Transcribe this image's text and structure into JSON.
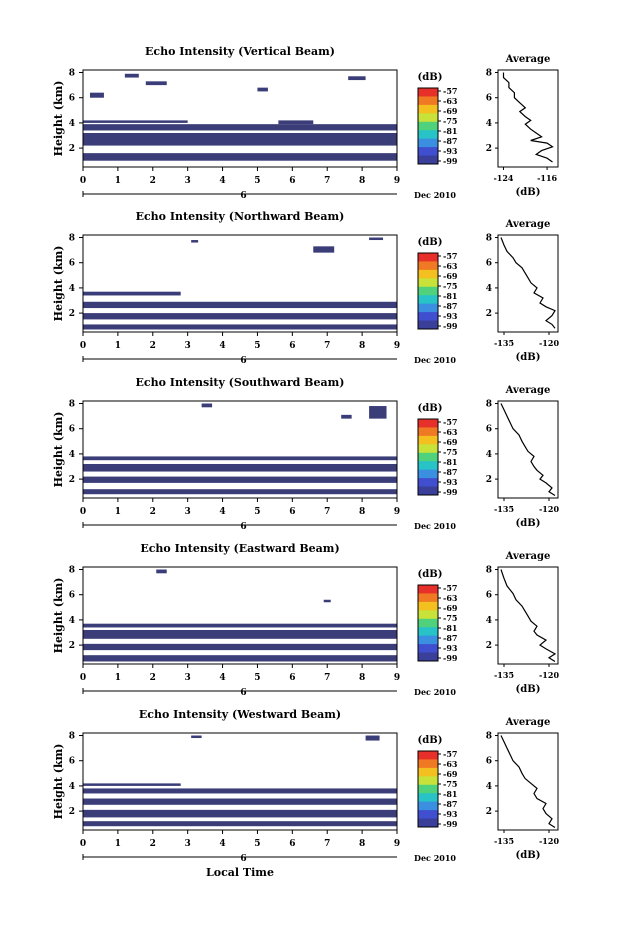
{
  "common": {
    "unit_label": "(dB)",
    "ylabel": "Height (km)",
    "date_label": "Dec 2010",
    "day_label": "6",
    "xlabel": "Local Time",
    "avg_title": "Average",
    "x_ticks": [
      "0",
      "1",
      "2",
      "3",
      "4",
      "5",
      "6",
      "7",
      "8",
      "9"
    ],
    "y_ticks": [
      "2",
      "4",
      "6",
      "8"
    ],
    "colorbar_ticks": [
      "-57",
      "-63",
      "-69",
      "-75",
      "-81",
      "-87",
      "-93",
      "-99"
    ],
    "colorbar_colors": [
      "#e8302a",
      "#f07a24",
      "#f3c020",
      "#c8e23a",
      "#4fd27b",
      "#27c3c7",
      "#3a8fe0",
      "#3f4fcf",
      "#3a3f9a"
    ]
  },
  "chart_data": [
    {
      "type": "heatmap",
      "title": "Echo Intensity (Vertical Beam)",
      "xlim": [
        0,
        9
      ],
      "ylim": [
        0.5,
        8.2
      ],
      "avg_xticks": [
        "-124",
        "-116"
      ],
      "avg_xlim": [
        -125,
        -114
      ],
      "avg_profile": [
        [
          -115,
          0.9
        ],
        [
          -116,
          1.2
        ],
        [
          -118,
          1.5
        ],
        [
          -117,
          1.8
        ],
        [
          -115,
          2.1
        ],
        [
          -116,
          2.4
        ],
        [
          -119,
          2.6
        ],
        [
          -117,
          2.9
        ],
        [
          -118,
          3.2
        ],
        [
          -119,
          3.5
        ],
        [
          -120,
          3.9
        ],
        [
          -119,
          4.2
        ],
        [
          -120,
          4.5
        ],
        [
          -121,
          4.9
        ],
        [
          -120,
          5.2
        ],
        [
          -121,
          5.6
        ],
        [
          -122,
          6.0
        ],
        [
          -122,
          6.4
        ],
        [
          -123,
          6.8
        ],
        [
          -123,
          7.2
        ],
        [
          -124,
          7.6
        ],
        [
          -124,
          8.0
        ]
      ],
      "echo_bands": [
        [
          0,
          9,
          1.0,
          1.6
        ],
        [
          0,
          9,
          2.2,
          3.2
        ],
        [
          0,
          9,
          3.4,
          3.9
        ],
        [
          0,
          3,
          4.0,
          4.2
        ],
        [
          5.6,
          6.6,
          3.9,
          4.2
        ],
        [
          0.2,
          0.6,
          6.0,
          6.4
        ],
        [
          1.2,
          1.6,
          7.6,
          7.9
        ],
        [
          7.6,
          8.1,
          7.4,
          7.7
        ],
        [
          1.8,
          2.4,
          7.0,
          7.3
        ],
        [
          5.0,
          5.3,
          6.5,
          6.8
        ]
      ]
    },
    {
      "type": "heatmap",
      "title": "Echo Intensity (Northward Beam)",
      "xlim": [
        0,
        9
      ],
      "ylim": [
        0.5,
        8.2
      ],
      "avg_xticks": [
        "-135",
        "-120"
      ],
      "avg_xlim": [
        -137,
        -117
      ],
      "avg_profile": [
        [
          -118,
          0.8
        ],
        [
          -119,
          1.1
        ],
        [
          -121,
          1.4
        ],
        [
          -119,
          1.8
        ],
        [
          -118,
          2.2
        ],
        [
          -121,
          2.5
        ],
        [
          -123,
          2.8
        ],
        [
          -122,
          3.2
        ],
        [
          -125,
          3.6
        ],
        [
          -124,
          4.0
        ],
        [
          -126,
          4.4
        ],
        [
          -127,
          4.8
        ],
        [
          -128,
          5.2
        ],
        [
          -129,
          5.6
        ],
        [
          -131,
          6.0
        ],
        [
          -132,
          6.4
        ],
        [
          -134,
          6.9
        ],
        [
          -135,
          7.4
        ],
        [
          -136,
          8.0
        ]
      ],
      "echo_bands": [
        [
          0,
          9,
          0.7,
          1.1
        ],
        [
          0,
          9,
          1.5,
          2.0
        ],
        [
          0,
          9,
          2.4,
          2.9
        ],
        [
          0,
          2.8,
          3.4,
          3.7
        ],
        [
          6.6,
          7.2,
          6.8,
          7.3
        ],
        [
          3.1,
          3.3,
          7.6,
          7.8
        ],
        [
          8.2,
          8.6,
          7.8,
          8.0
        ]
      ]
    },
    {
      "type": "heatmap",
      "title": "Echo Intensity (Southward Beam)",
      "xlim": [
        0,
        9
      ],
      "ylim": [
        0.5,
        8.2
      ],
      "avg_xticks": [
        "-135",
        "-120"
      ],
      "avg_xlim": [
        -137,
        -117
      ],
      "avg_profile": [
        [
          -118,
          0.7
        ],
        [
          -120,
          1.0
        ],
        [
          -119,
          1.3
        ],
        [
          -121,
          1.7
        ],
        [
          -123,
          2.0
        ],
        [
          -122,
          2.3
        ],
        [
          -124,
          2.7
        ],
        [
          -125,
          3.0
        ],
        [
          -126,
          3.4
        ],
        [
          -125,
          3.8
        ],
        [
          -127,
          4.2
        ],
        [
          -128,
          4.6
        ],
        [
          -129,
          5.0
        ],
        [
          -130,
          5.5
        ],
        [
          -132,
          6.0
        ],
        [
          -133,
          6.5
        ],
        [
          -134,
          7.0
        ],
        [
          -135,
          7.5
        ],
        [
          -136,
          8.0
        ]
      ],
      "echo_bands": [
        [
          0,
          9,
          0.8,
          1.2
        ],
        [
          0,
          9,
          1.7,
          2.2
        ],
        [
          0,
          9,
          2.6,
          3.2
        ],
        [
          0,
          9,
          3.5,
          3.8
        ],
        [
          3.4,
          3.7,
          7.7,
          8.0
        ],
        [
          8.2,
          8.7,
          6.8,
          7.8
        ],
        [
          7.4,
          7.7,
          6.8,
          7.1
        ]
      ]
    },
    {
      "type": "heatmap",
      "title": "Echo Intensity (Eastward Beam)",
      "xlim": [
        0,
        9
      ],
      "ylim": [
        0.5,
        8.2
      ],
      "avg_xticks": [
        "-135",
        "-120"
      ],
      "avg_xlim": [
        -137,
        -117
      ],
      "avg_profile": [
        [
          -118,
          0.7
        ],
        [
          -120,
          1.0
        ],
        [
          -118,
          1.3
        ],
        [
          -121,
          1.7
        ],
        [
          -123,
          2.0
        ],
        [
          -121,
          2.4
        ],
        [
          -124,
          2.8
        ],
        [
          -125,
          3.1
        ],
        [
          -124,
          3.5
        ],
        [
          -126,
          3.9
        ],
        [
          -127,
          4.3
        ],
        [
          -128,
          4.7
        ],
        [
          -129,
          5.1
        ],
        [
          -131,
          5.6
        ],
        [
          -132,
          6.1
        ],
        [
          -134,
          6.7
        ],
        [
          -135,
          7.3
        ],
        [
          -136,
          8.0
        ]
      ],
      "echo_bands": [
        [
          0,
          9,
          0.7,
          1.2
        ],
        [
          0,
          9,
          1.6,
          2.1
        ],
        [
          0,
          9,
          2.5,
          3.2
        ],
        [
          0,
          9,
          3.4,
          3.7
        ],
        [
          2.1,
          2.4,
          7.7,
          8.0
        ],
        [
          6.9,
          7.1,
          5.4,
          5.6
        ]
      ]
    },
    {
      "type": "heatmap",
      "title": "Echo Intensity (Westward Beam)",
      "xlim": [
        0,
        9
      ],
      "ylim": [
        0.5,
        8.2
      ],
      "avg_xticks": [
        "-135",
        "-120"
      ],
      "avg_xlim": [
        -137,
        -117
      ],
      "avg_profile": [
        [
          -118,
          0.7
        ],
        [
          -120,
          1.0
        ],
        [
          -119,
          1.4
        ],
        [
          -121,
          1.8
        ],
        [
          -122,
          2.2
        ],
        [
          -121,
          2.6
        ],
        [
          -124,
          3.0
        ],
        [
          -125,
          3.4
        ],
        [
          -124,
          3.8
        ],
        [
          -126,
          4.2
        ],
        [
          -128,
          4.6
        ],
        [
          -129,
          5.0
        ],
        [
          -130,
          5.5
        ],
        [
          -132,
          6.0
        ],
        [
          -133,
          6.5
        ],
        [
          -134,
          7.0
        ],
        [
          -135,
          7.5
        ],
        [
          -136,
          8.0
        ]
      ],
      "echo_bands": [
        [
          0,
          9,
          0.8,
          1.2
        ],
        [
          0,
          9,
          1.5,
          2.1
        ],
        [
          0,
          9,
          2.5,
          3.0
        ],
        [
          0,
          9,
          3.4,
          3.8
        ],
        [
          0,
          2.8,
          4.0,
          4.2
        ],
        [
          3.1,
          3.4,
          7.8,
          8.0
        ],
        [
          8.1,
          8.5,
          7.6,
          8.0
        ]
      ]
    }
  ]
}
